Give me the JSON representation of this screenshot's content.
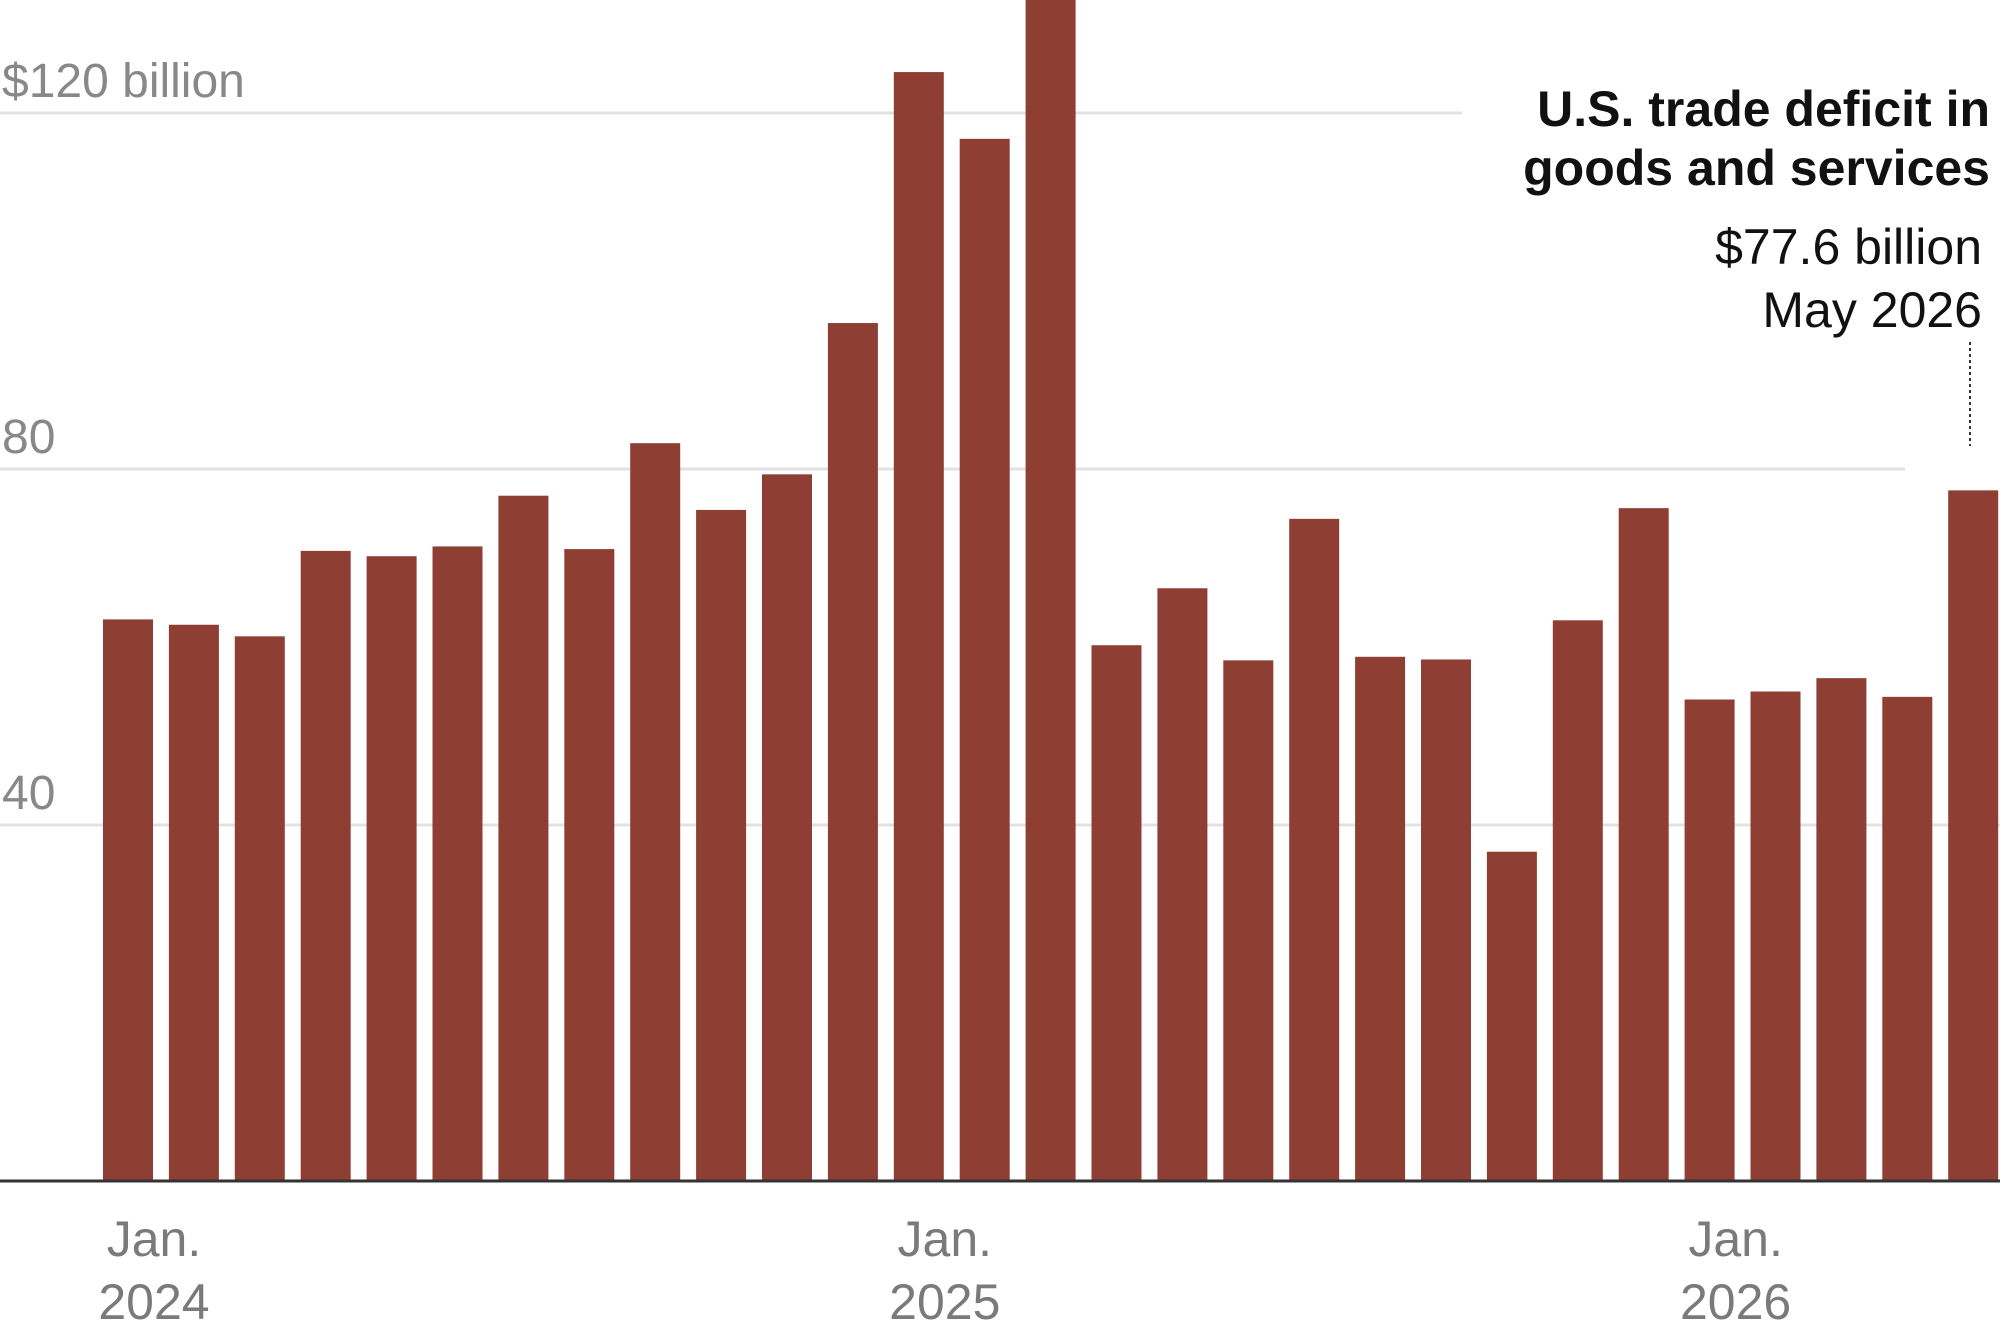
{
  "chart_data": {
    "type": "bar",
    "title_lines": [
      "U.S. trade deficit in",
      "goods and services"
    ],
    "unit_label": "$120 billion",
    "y_ticks": [
      {
        "value": 120,
        "label": "$120 billion"
      },
      {
        "value": 80,
        "label": "80"
      },
      {
        "value": 40,
        "label": "40"
      }
    ],
    "ylim": [
      0,
      133
    ],
    "x_ticks": [
      {
        "index": 0,
        "month": "Jan.",
        "year": "2024"
      },
      {
        "index": 12,
        "month": "Jan.",
        "year": "2025"
      },
      {
        "index": 24,
        "month": "Jan.",
        "year": "2026"
      }
    ],
    "values": [
      63.1,
      62.5,
      61.2,
      70.8,
      70.2,
      71.3,
      77.0,
      71.0,
      82.9,
      75.4,
      79.4,
      96.4,
      124.6,
      117.1,
      133.0,
      60.2,
      66.6,
      58.5,
      74.4,
      58.9,
      58.6,
      37.0,
      63.0,
      75.6,
      54.1,
      55.0,
      56.5,
      54.4,
      77.6
    ],
    "bar_color": "#8f3e34",
    "grid": true,
    "annotation": {
      "index": 28,
      "value_label": "$77.6 billion",
      "date_label": "May 2026"
    }
  }
}
